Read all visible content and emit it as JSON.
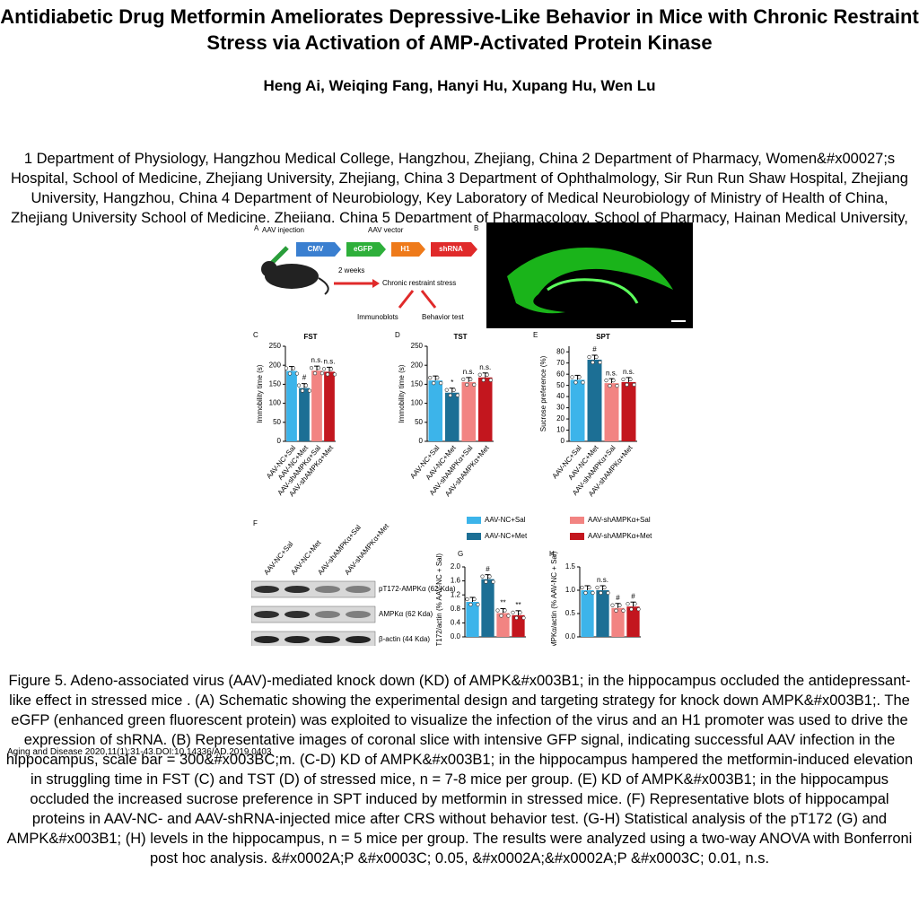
{
  "header": {
    "title": "Antidiabetic Drug Metformin Ameliorates Depressive-Like Behavior in Mice with Chronic Restraint Stress via Activation of AMP-Activated Protein Kinase",
    "authors": "Heng Ai, Weiqing Fang, Hanyi Hu, Xupang Hu, Wen Lu",
    "affiliations": "1 Department of Physiology, Hangzhou Medical College, Hangzhou, Zhejiang, China 2 Department of Pharmacy, Women&#x00027;s Hospital, School of Medicine, Zhejiang University, Zhejiang, China 3 Department of Ophthalmology, Sir Run Run Shaw Hospital, Zhejiang University, Hangzhou, China 4 Department of Neurobiology, Key Laboratory of Medical Neurobiology of Ministry of Health of China, Zhejiang University School of Medicine, Zhejiang, China 5 Department of Pharmacology, School of Pharmacy, Hainan Medical University, Haikou, Hainan, China"
  },
  "figure": {
    "groups": [
      "AAV-NC+Sal",
      "AAV-NC+Met",
      "AAV-shAMPKα+Sal",
      "AAV-shAMPKα+Met"
    ],
    "colors": [
      "#3cb4ea",
      "#1c6f95",
      "#f28482",
      "#c3161e"
    ],
    "panel_a": {
      "letter": "A",
      "injection": "AAV injection",
      "vector_title": "AAV vector",
      "vector": [
        "CMV",
        "eGFP",
        "H1",
        "shRNA"
      ],
      "weeks": "2 weeks",
      "stress": "Chronic restraint stress",
      "outcomes": [
        "Immunoblots",
        "Behavior test"
      ]
    },
    "panel_b": {
      "letter": "B"
    },
    "charts": [
      {
        "type": "bar",
        "letter": "C",
        "title": "FST",
        "ylabel": "Immobility time (s)",
        "values": [
          185,
          140,
          186,
          183
        ],
        "annotations": [
          null,
          "#",
          "n.s.",
          "n.s."
        ],
        "ylim": [
          0,
          250
        ],
        "yticks": [
          0,
          50,
          100,
          150,
          200,
          250
        ],
        "show_groups": true
      },
      {
        "type": "bar",
        "letter": "D",
        "title": "TST",
        "ylabel": "Immobility time (s)",
        "values": [
          160,
          128,
          156,
          168
        ],
        "annotations": [
          null,
          "*",
          "n.s.",
          "n.s."
        ],
        "ylim": [
          0,
          250
        ],
        "yticks": [
          0,
          50,
          100,
          150,
          200,
          250
        ],
        "show_groups": true
      },
      {
        "type": "bar",
        "letter": "E",
        "title": "SPT",
        "ylabel": "Sucrose preference (%)",
        "values": [
          55,
          73,
          52,
          53
        ],
        "annotations": [
          null,
          "#",
          "n.s.",
          "n.s."
        ],
        "ylim": [
          0,
          85
        ],
        "yticks": [
          0,
          10,
          20,
          30,
          40,
          50,
          60,
          70,
          80
        ],
        "show_groups": true
      },
      {
        "type": "bar",
        "letter": "G",
        "title": null,
        "ylabel": "pT172/actin (% AAV-NC + Sal)",
        "values": [
          1.0,
          1.65,
          0.68,
          0.62
        ],
        "annotations": [
          null,
          "#",
          "**",
          "**"
        ],
        "ylim": [
          0,
          2.0
        ],
        "yticks": [
          {
            "value": 0,
            "label": "0.0"
          },
          {
            "value": 0.4,
            "label": "0.4"
          },
          {
            "value": 0.8,
            "label": "0.8"
          },
          {
            "value": 1.2,
            "label": "1.2"
          },
          {
            "value": 1.6,
            "label": "1.6"
          },
          {
            "value": 2.0,
            "label": "2.0"
          }
        ],
        "show_groups": false
      },
      {
        "type": "bar",
        "letter": "H",
        "title": null,
        "ylabel": "AMPKα/actin (% AAV-NC + Sal)",
        "values": [
          1.0,
          1.0,
          0.62,
          0.65
        ],
        "annotations": [
          null,
          "n.s.",
          "#",
          "#"
        ],
        "ylim": [
          0,
          1.5
        ],
        "yticks": [
          {
            "value": 0,
            "label": "0.0"
          },
          0.5,
          {
            "value": 1.0,
            "label": "1.0"
          },
          1.5
        ],
        "show_groups": false
      }
    ],
    "blot": {
      "letter": "F",
      "bands": [
        "pT172-AMPKα (62 Kda)",
        "AMPKα (62 Kda)",
        "β-actin (44 Kda)"
      ]
    }
  },
  "caption": "Figure 5.    Adeno-associated virus (AAV)-mediated knock down (KD) of AMPK&#x003B1; in the hippocampus occluded the antidepressant-like effect in stressed mice .  (A)  Schematic showing the experimental design and targeting strategy for knock down AMPK&#x003B1;. The eGFP (enhanced green fluorescent protein) was exploited to visualize the infection of the virus and an H1 promoter was used to drive the expression of shRNA.  (B)  Representative images of coronal slice with intensive GFP signal, indicating successful AAV infection in the hippocampus, scale bar = 300&#x003BC;m.  (C-D)  KD of AMPK&#x003B1; in the hippocampus hampered the metformin-induced elevation in struggling time in FST (C) and TST (D) of stressed mice, n = 7-8 mice per group.  (E)  KD of AMPK&#x003B1; in the hippocampus occluded the increased sucrose preference in SPT induced by metformin in stressed mice.  (F)  Representative blots of hippocampal proteins in AAV-NC- and AAV-shRNA-injected mice after CRS without behavior test.  (G-H)  Statistical analysis of the pT172 (G) and AMPK&#x003B1; (H) levels in the hippocampus, n = 5 mice per group. The results were analyzed using a two-way ANOVA with Bonferroni post hoc analysis. &#x0002A;P &#x0003C; 0.05, &#x0002A;&#x0002A;P &#x0003C; 0.01, n.s.",
  "citation": "Aging and Disease 2020,11(1):31-43.DOI:10.14336/AD.2019.0403"
}
